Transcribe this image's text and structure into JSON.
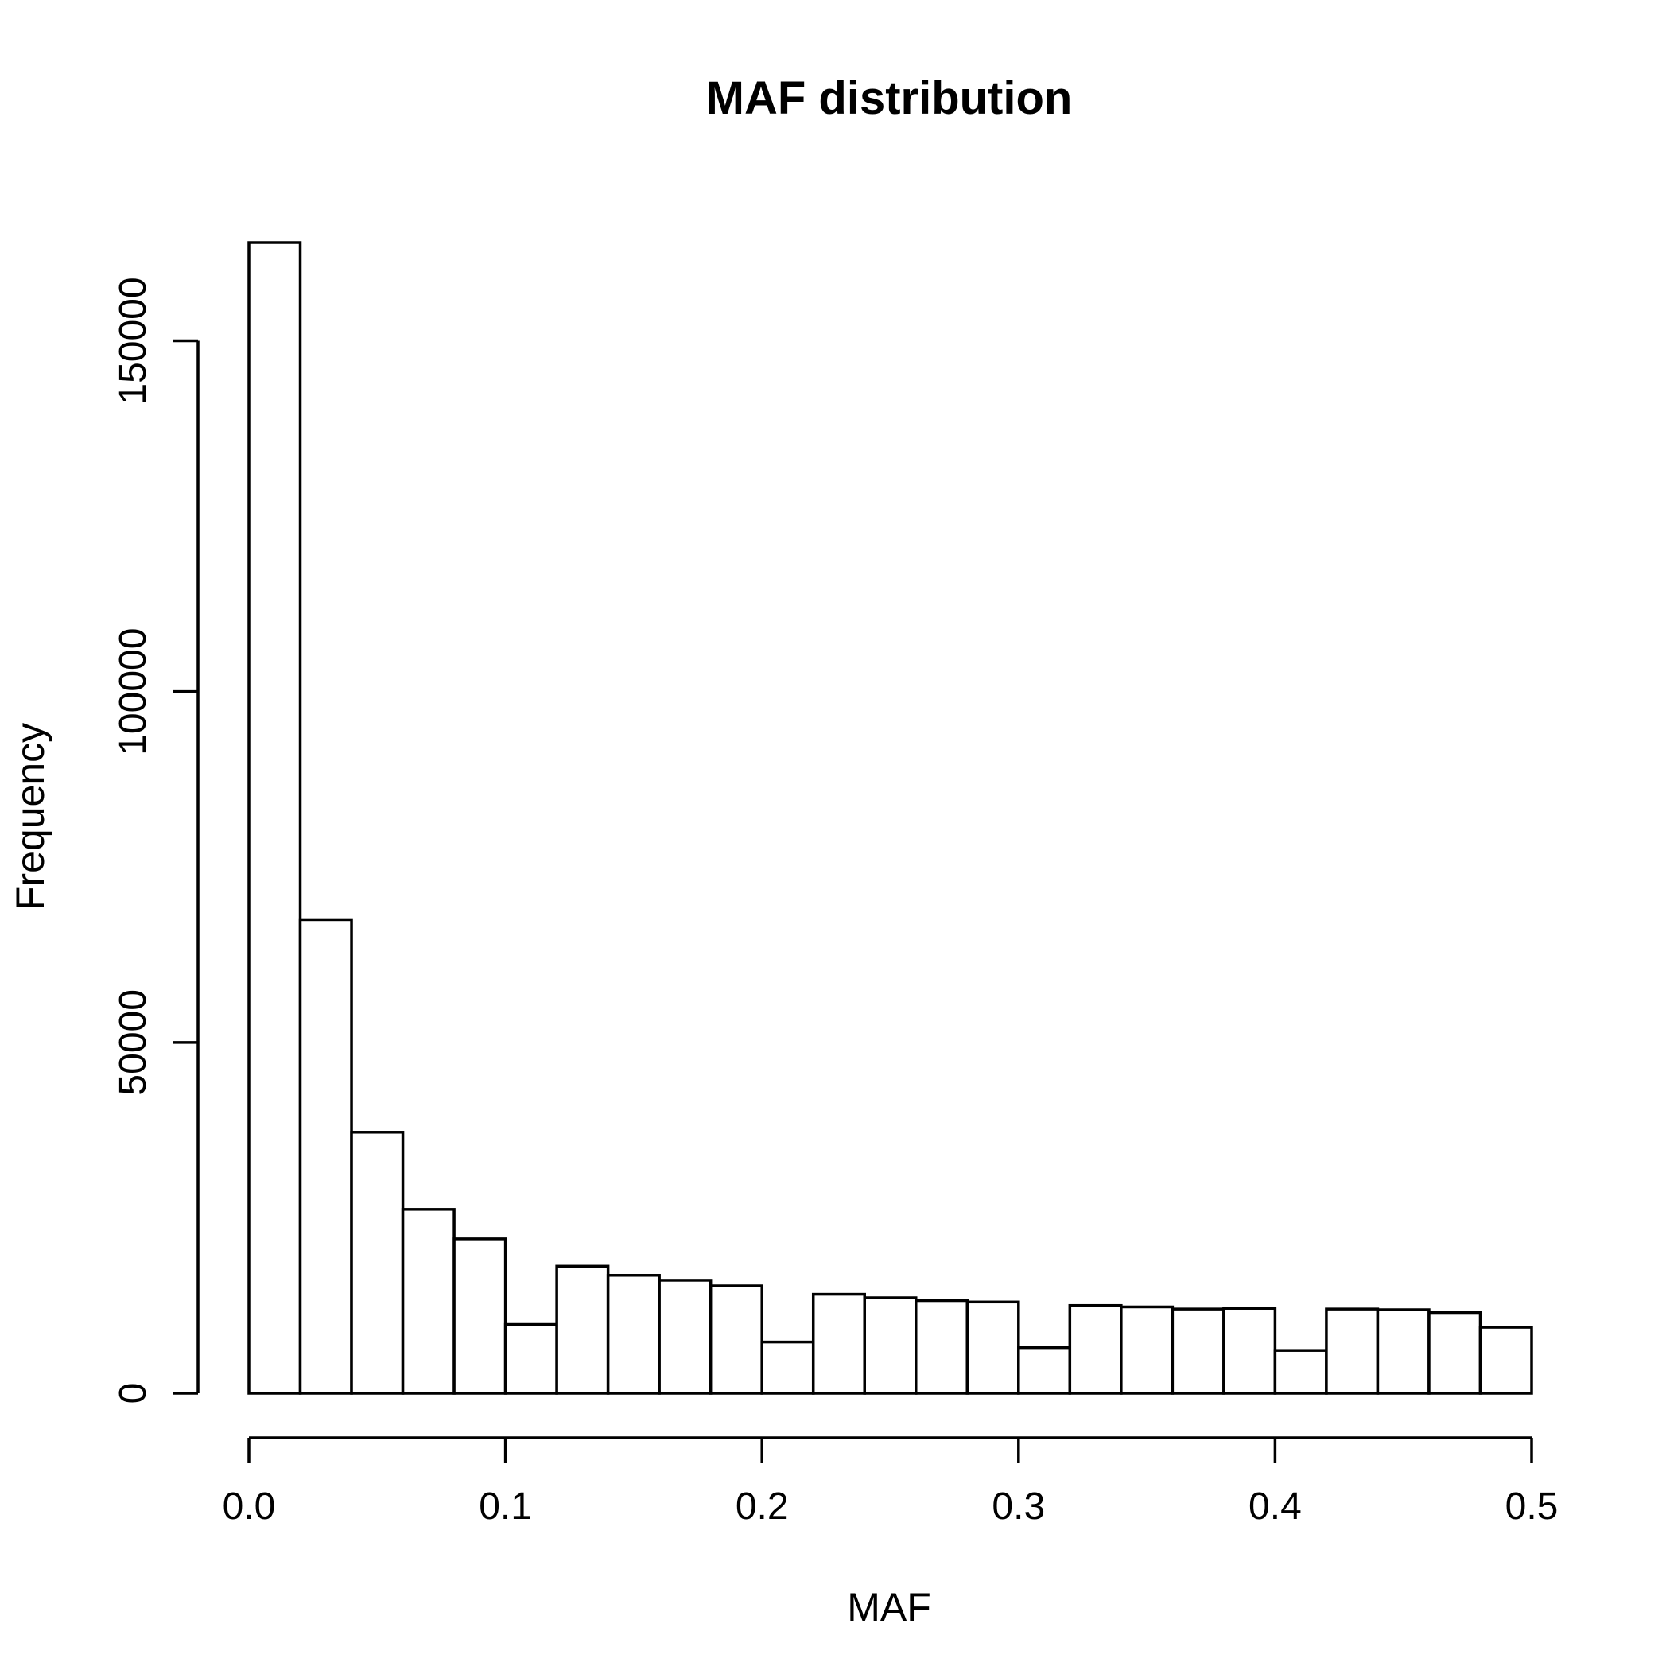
{
  "chart_data": {
    "type": "bar",
    "title": "MAF distribution",
    "xlabel": "MAF",
    "ylabel": "Frequency",
    "bin_edges": [
      0.0,
      0.02,
      0.04,
      0.06,
      0.08,
      0.1,
      0.12,
      0.14,
      0.16,
      0.18,
      0.2,
      0.22,
      0.24,
      0.26,
      0.28,
      0.3,
      0.32,
      0.34,
      0.36,
      0.38,
      0.4,
      0.42,
      0.44,
      0.46,
      0.48,
      0.5
    ],
    "values": [
      164000,
      67500,
      37200,
      26200,
      22000,
      9800,
      18100,
      16800,
      16100,
      15300,
      7300,
      14100,
      13600,
      13200,
      13000,
      6500,
      12500,
      12300,
      12000,
      12100,
      6100,
      12000,
      11900,
      11500,
      9400
    ],
    "xlim": [
      0.0,
      0.5
    ],
    "ylim": [
      0,
      164000
    ],
    "x_ticks": [
      0.0,
      0.1,
      0.2,
      0.3,
      0.4,
      0.5
    ],
    "x_tick_labels": [
      "0.0",
      "0.1",
      "0.2",
      "0.3",
      "0.4",
      "0.5"
    ],
    "y_ticks": [
      0,
      50000,
      100000,
      150000
    ],
    "y_tick_labels": [
      "0",
      "50000",
      "100000",
      "150000"
    ],
    "grid": false,
    "bar_fill": "#ffffff",
    "bar_stroke": "#000000"
  }
}
